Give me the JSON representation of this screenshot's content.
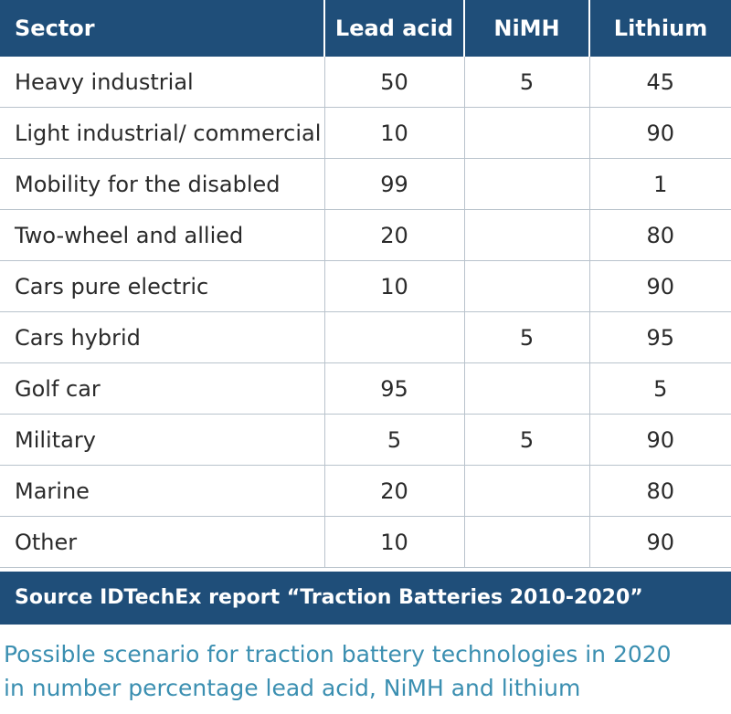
{
  "chart_data": {
    "type": "table",
    "columns": [
      "Sector",
      "Lead acid",
      "NiMH",
      "Lithium"
    ],
    "rows": [
      [
        "Heavy industrial",
        "50",
        "5",
        "45"
      ],
      [
        "Light industrial/ commercial",
        "10",
        "",
        "90"
      ],
      [
        "Mobility for the disabled",
        "99",
        "",
        "1"
      ],
      [
        "Two-wheel and allied",
        "20",
        "",
        "80"
      ],
      [
        "Cars pure electric",
        "10",
        "",
        "90"
      ],
      [
        "Cars hybrid",
        "",
        "5",
        "95"
      ],
      [
        "Golf car",
        "95",
        "",
        "5"
      ],
      [
        "Military",
        "5",
        "5",
        "90"
      ],
      [
        "Marine",
        "20",
        "",
        "80"
      ],
      [
        "Other",
        "10",
        "",
        "90"
      ]
    ],
    "source": "Source IDTechEx report “Traction Batteries 2010-2020”",
    "caption_lines": [
      "Possible scenario for traction battery technologies in 2020",
      "in number percentage lead acid, NiMH and lithium"
    ]
  },
  "colors": {
    "header_bg": "#1f4e79",
    "header_text": "#ffffff",
    "grid": "#b9c3cc",
    "caption_text": "#3b8fb1"
  }
}
